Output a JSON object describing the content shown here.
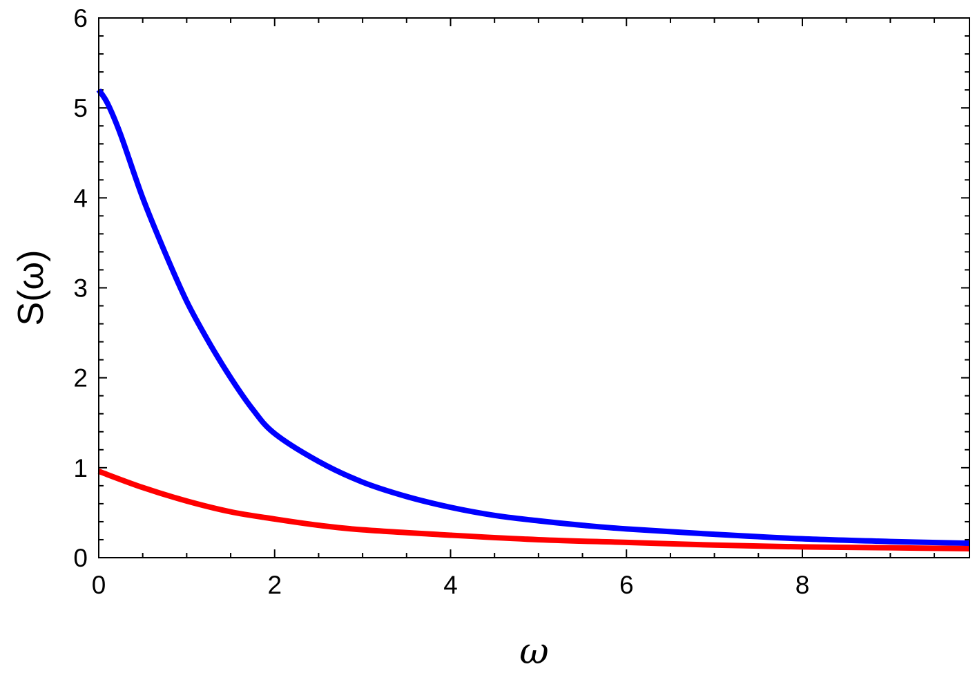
{
  "chart_data": {
    "type": "line",
    "xlabel": "ω",
    "ylabel": "S(ω)",
    "xlim": [
      0,
      9.9
    ],
    "ylim": [
      0,
      6
    ],
    "x_ticks": [
      0,
      2,
      4,
      6,
      8
    ],
    "x_tick_labels": [
      "0",
      "2",
      "4",
      "6",
      "8"
    ],
    "y_ticks": [
      0,
      1,
      2,
      3,
      4,
      5,
      6
    ],
    "y_tick_labels": [
      "0",
      "1",
      "2",
      "3",
      "4",
      "5",
      "6"
    ],
    "grid": false,
    "legend": "none",
    "series": [
      {
        "color": "#0000ff",
        "x": [
          0,
          0.1,
          0.25,
          0.5,
          0.75,
          1.0,
          1.25,
          1.5,
          1.75,
          2.0,
          2.5,
          3.0,
          3.5,
          4.0,
          4.5,
          5.0,
          5.5,
          6.0,
          7.0,
          8.0,
          9.0,
          9.9
        ],
        "y": [
          5.2,
          5.05,
          4.7,
          4.0,
          3.4,
          2.85,
          2.4,
          2.0,
          1.65,
          1.38,
          1.07,
          0.84,
          0.68,
          0.56,
          0.47,
          0.41,
          0.36,
          0.32,
          0.26,
          0.21,
          0.18,
          0.16
        ]
      },
      {
        "color": "#ff0000",
        "x": [
          0,
          0.5,
          1.0,
          1.5,
          2.0,
          2.5,
          3.0,
          4.0,
          5.0,
          6.0,
          7.0,
          8.0,
          9.0,
          9.9
        ],
        "y": [
          0.96,
          0.78,
          0.63,
          0.51,
          0.43,
          0.36,
          0.31,
          0.25,
          0.2,
          0.17,
          0.14,
          0.12,
          0.11,
          0.1
        ]
      }
    ]
  }
}
